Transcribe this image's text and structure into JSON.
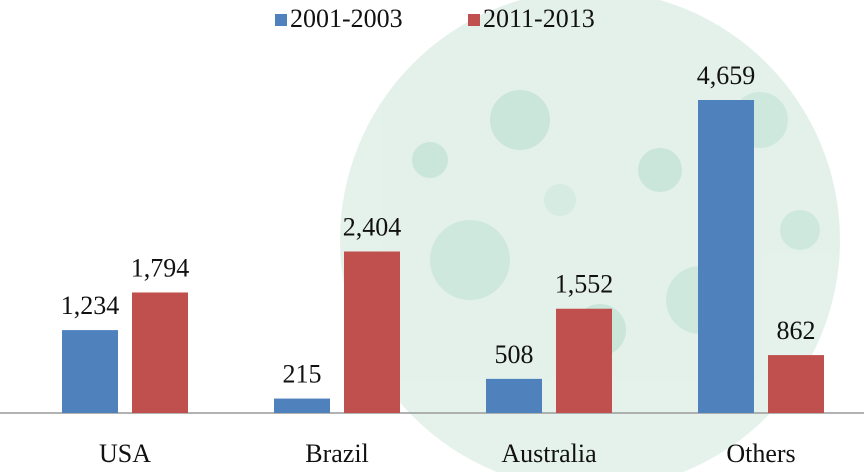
{
  "chart_data": {
    "type": "bar",
    "categories": [
      "USA",
      "Brazil",
      "Australia",
      "Others"
    ],
    "series": [
      {
        "name": "2001-2003",
        "color": "#4f81bd",
        "values": [
          1234,
          215,
          508,
          4659
        ],
        "value_labels": [
          "1,234",
          "215",
          "508",
          "4,659"
        ]
      },
      {
        "name": "2011-2013",
        "color": "#c0504d",
        "values": [
          1794,
          2404,
          1552,
          862
        ],
        "value_labels": [
          "1,794",
          "2,404",
          "1,552",
          "862"
        ]
      }
    ],
    "legend": "top"
  }
}
